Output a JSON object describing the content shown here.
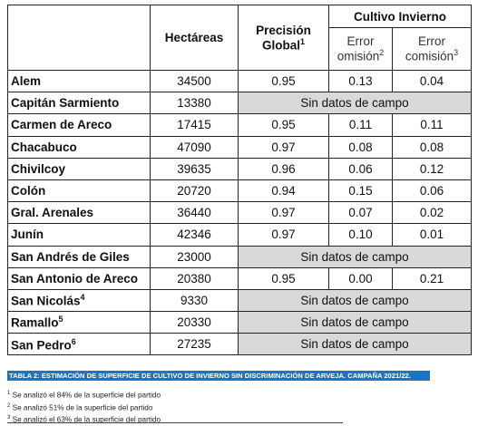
{
  "header": {
    "hectares": "Hectáreas",
    "precision": "Precisión Global",
    "precision_note": "1",
    "group": "Cultivo Invierno",
    "omission": "Error omisión",
    "omission_note": "2",
    "commission": "Error comisión",
    "commission_note": "3"
  },
  "table": {
    "rows": [
      {
        "name": "Alem",
        "hectares": "34500",
        "values": [
          "0.95",
          "0.13",
          "0.04"
        ]
      },
      {
        "name": "Capitán Sarmiento",
        "hectares": "13380",
        "status": "Sin datos de campo"
      },
      {
        "name": "Carmen de Areco",
        "hectares": "17415",
        "values": [
          "0.95",
          "0.11",
          "0.11"
        ]
      },
      {
        "name": "Chacabuco",
        "hectares": "47090",
        "values": [
          "0.97",
          "0.08",
          "0.08"
        ]
      },
      {
        "name": "Chivilcoy",
        "hectares": "39635",
        "values": [
          "0.96",
          "0.06",
          "0.12"
        ]
      },
      {
        "name": "Colón",
        "hectares": "20720",
        "values": [
          "0.94",
          "0.15",
          "0.06"
        ]
      },
      {
        "name": "Gral. Arenales",
        "hectares": "36440",
        "values": [
          "0.97",
          "0.07",
          "0.02"
        ]
      },
      {
        "name": "Junín",
        "hectares": "42346",
        "values": [
          "0.97",
          "0.10",
          "0.01"
        ]
      },
      {
        "name": "San Andrés de Giles",
        "hectares": "23000",
        "status": "Sin datos de campo"
      },
      {
        "name": "San Antonio de Areco",
        "hectares": "20380",
        "values": [
          "0.95",
          "0.00",
          "0.21"
        ]
      },
      {
        "name": "San Nicolás",
        "note": "4",
        "hectares": "9330",
        "status": "Sin datos de campo"
      },
      {
        "name": "Ramallo",
        "note": "5",
        "hectares": "20330",
        "status": "Sin datos de campo"
      },
      {
        "name": "San Pedro",
        "note": "6",
        "hectares": "27235",
        "status": "Sin datos de campo"
      }
    ]
  },
  "caption": "TABLA 2: ESTIMACIÓN DE SUPERFICIE DE CULTIVO DE INVIERNO SIN DISCRIMINACIÓN DE ARVEJA. CAMPAÑA 2021/22.",
  "footnotes": [
    {
      "mark": "1",
      "text": "Se analizó el 84% de la superficie del partido"
    },
    {
      "mark": "2",
      "text": "Se analizó 51% de la superficie del partido"
    },
    {
      "mark": "3",
      "text": "Se analizó el 63% de la superficie del partido"
    }
  ]
}
